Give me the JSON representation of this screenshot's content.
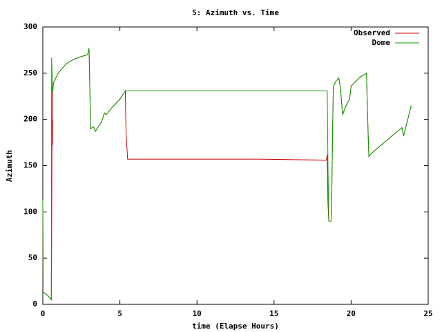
{
  "chart_data": {
    "type": "line",
    "title": "5: Azimuth vs. Time",
    "xlabel": "time (Elapse Hours)",
    "ylabel": "Azimuth",
    "x": [
      0,
      0.02,
      0.3,
      0.55,
      0.57,
      0.6,
      0.62,
      0.65,
      0.7,
      1,
      1.5,
      2,
      2.5,
      2.9,
      3.0,
      3.1,
      3.3,
      3.4,
      3.8,
      4.0,
      4.1,
      4.5,
      5.0,
      5.35,
      5.4,
      5.5,
      13.8,
      18.4,
      18.45,
      18.5,
      18.55,
      18.7,
      18.75,
      18.8,
      18.85,
      19,
      19.2,
      19.3,
      19.45,
      19.6,
      19.9,
      20.0,
      20.3,
      20.6,
      21.0,
      21.05,
      21.15,
      21.3,
      22,
      22.5,
      23.0,
      23.3,
      23.4,
      23.6,
      23.9
    ],
    "series": [
      {
        "name": "Observed",
        "color": "#cc0000",
        "values": [
          113,
          13,
          10,
          5,
          60,
          200,
          172,
          232,
          240,
          250,
          260,
          265,
          268,
          270,
          277,
          190,
          192,
          187,
          197,
          207,
          205,
          213,
          222,
          231,
          185,
          157,
          157,
          156,
          162,
          108,
          90,
          90,
          125,
          190,
          235,
          241,
          245,
          235,
          205,
          212,
          222,
          236,
          241,
          246,
          250,
          215,
          160,
          163,
          173,
          180,
          187,
          191,
          182,
          195,
          215
        ]
      },
      {
        "name": "Dome",
        "color": "#00a000",
        "values": [
          113,
          13,
          10,
          5,
          267,
          250,
          230,
          232,
          240,
          250,
          260,
          265,
          268,
          270,
          277,
          190,
          192,
          187,
          197,
          207,
          205,
          213,
          222,
          231,
          231,
          231,
          231,
          231,
          231,
          150,
          90,
          90,
          125,
          190,
          235,
          241,
          245,
          235,
          205,
          212,
          222,
          236,
          241,
          246,
          250,
          215,
          160,
          163,
          173,
          180,
          187,
          191,
          182,
          195,
          215
        ]
      }
    ],
    "xlim": [
      0,
      25
    ],
    "xticks": [
      0,
      5,
      10,
      15,
      20,
      25
    ],
    "ylim": [
      0,
      300
    ],
    "yticks": [
      0,
      50,
      100,
      150,
      200,
      250,
      300
    ],
    "legend": "top-right"
  }
}
